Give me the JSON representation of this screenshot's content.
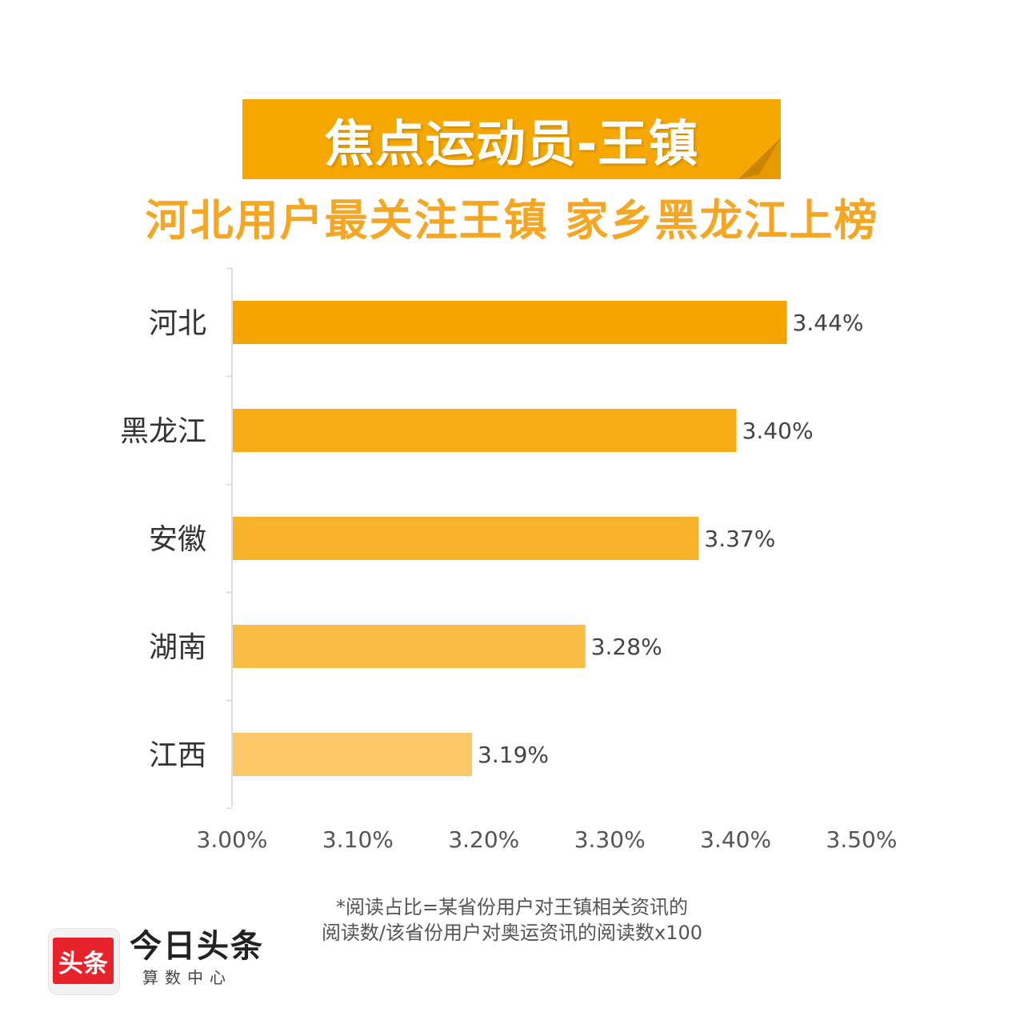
{
  "banner": {
    "title": "焦点运动员-王镇"
  },
  "subtitle": "河北用户最关注王镇 家乡黑龙江上榜",
  "colors": {
    "banner": "#f6a800",
    "subtitle": "#f5a623",
    "brand_red": "#e8222b"
  },
  "chart_data": {
    "type": "bar",
    "orientation": "horizontal",
    "categories": [
      "河北",
      "黑龙江",
      "安徽",
      "湖南",
      "江西"
    ],
    "values": [
      3.44,
      3.4,
      3.37,
      3.28,
      3.19
    ],
    "value_labels": [
      "3.44%",
      "3.40%",
      "3.37%",
      "3.28%",
      "3.19%"
    ],
    "bar_colors": [
      "#f6a500",
      "#f7ab14",
      "#f8b229",
      "#f9bd46",
      "#fbc767"
    ],
    "xlim": [
      3.0,
      3.5
    ],
    "x_ticks": [
      3.0,
      3.1,
      3.2,
      3.3,
      3.4,
      3.5
    ],
    "x_tick_labels": [
      "3.00%",
      "3.10%",
      "3.20%",
      "3.30%",
      "3.40%",
      "3.50%"
    ],
    "grid": false,
    "title": "",
    "xlabel": "",
    "ylabel": ""
  },
  "footnote": {
    "line1": "*阅读占比=某省份用户对王镇相关资讯的",
    "line2": "阅读数/该省份用户对奥运资讯的阅读数x100"
  },
  "logo": {
    "badge": "头条",
    "name": "今日头条",
    "sub": "算数中心"
  }
}
